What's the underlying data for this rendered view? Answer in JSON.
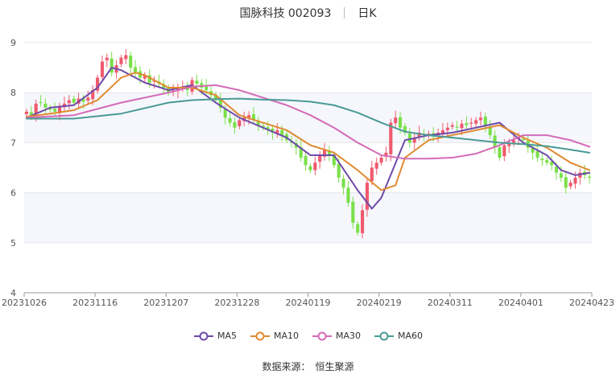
{
  "header": {
    "title": "国脉科技 002093",
    "period": "日K"
  },
  "source": {
    "label": "数据来源：",
    "provider": "恒生聚源"
  },
  "chart_data": {
    "type": "candlestick",
    "y_ticks": [
      4,
      5,
      6,
      7,
      8,
      9
    ],
    "ylim": [
      4,
      9
    ],
    "x_ticks": [
      "20231026",
      "20231116",
      "20231207",
      "20231228",
      "20240119",
      "20240219",
      "20240311",
      "20240401",
      "20240423"
    ],
    "n_bars": 120,
    "up_color": "#f05a6e",
    "down_color": "#7ae04a",
    "candles_close": [
      7.62,
      7.55,
      7.78,
      7.8,
      7.7,
      7.66,
      7.62,
      7.72,
      7.78,
      7.85,
      7.8,
      7.88,
      7.82,
      7.9,
      8.05,
      8.3,
      8.62,
      8.7,
      8.4,
      8.55,
      8.7,
      8.75,
      8.5,
      8.4,
      8.3,
      8.35,
      8.2,
      8.25,
      8.18,
      8.1,
      8.0,
      8.05,
      8.1,
      8.1,
      8.05,
      8.25,
      8.18,
      8.1,
      8.05,
      7.95,
      7.85,
      7.7,
      7.5,
      7.4,
      7.3,
      7.45,
      7.5,
      7.55,
      7.45,
      7.35,
      7.3,
      7.25,
      7.2,
      7.25,
      7.15,
      7.05,
      7.0,
      6.9,
      6.7,
      6.55,
      6.45,
      6.6,
      6.75,
      6.85,
      6.75,
      6.55,
      6.3,
      6.1,
      5.8,
      5.4,
      5.2,
      5.65,
      6.2,
      6.5,
      6.6,
      6.7,
      6.8,
      7.4,
      7.5,
      7.3,
      7.2,
      7.0,
      7.1,
      7.2,
      7.15,
      7.18,
      7.12,
      7.2,
      7.25,
      7.3,
      7.35,
      7.3,
      7.38,
      7.35,
      7.4,
      7.45,
      7.5,
      7.35,
      7.15,
      6.9,
      6.7,
      6.95,
      7.0,
      7.05,
      7.1,
      7.05,
      6.9,
      6.8,
      6.7,
      6.65,
      6.6,
      6.55,
      6.4,
      6.3,
      6.1,
      6.2,
      6.3,
      6.4,
      6.35,
      6.3
    ],
    "series": [
      {
        "name": "MA5",
        "color": "#6e4aa8",
        "x": [
          0,
          5,
          10,
          15,
          18,
          20,
          25,
          30,
          35,
          40,
          45,
          50,
          55,
          60,
          65,
          70,
          73,
          75,
          80,
          85,
          90,
          95,
          100,
          105,
          110,
          113,
          116,
          119
        ],
        "values": [
          7.5,
          7.7,
          7.75,
          8.1,
          8.5,
          8.45,
          8.2,
          8.05,
          8.15,
          7.8,
          7.5,
          7.3,
          7.1,
          6.75,
          6.75,
          6.05,
          5.68,
          5.9,
          7.05,
          7.15,
          7.2,
          7.3,
          7.4,
          7.0,
          6.75,
          6.45,
          6.35,
          6.4
        ]
      },
      {
        "name": "MA10",
        "color": "#e08a30",
        "x": [
          0,
          5,
          10,
          15,
          20,
          23,
          25,
          30,
          35,
          40,
          45,
          50,
          55,
          60,
          65,
          70,
          75,
          78,
          80,
          85,
          90,
          95,
          100,
          105,
          110,
          115,
          119
        ],
        "values": [
          7.52,
          7.58,
          7.65,
          7.85,
          8.3,
          8.4,
          8.35,
          8.1,
          8.1,
          7.95,
          7.55,
          7.4,
          7.25,
          6.95,
          6.8,
          6.45,
          6.05,
          6.15,
          6.7,
          7.05,
          7.15,
          7.25,
          7.35,
          7.1,
          6.9,
          6.6,
          6.45
        ]
      },
      {
        "name": "MA30",
        "color": "#d46ab8",
        "x": [
          0,
          10,
          20,
          30,
          35,
          40,
          45,
          50,
          55,
          60,
          65,
          70,
          75,
          80,
          85,
          90,
          95,
          100,
          105,
          110,
          115,
          119
        ],
        "values": [
          7.5,
          7.55,
          7.8,
          8.0,
          8.12,
          8.15,
          8.05,
          7.9,
          7.75,
          7.55,
          7.3,
          7.0,
          6.75,
          6.68,
          6.68,
          6.7,
          6.78,
          6.95,
          7.15,
          7.15,
          7.05,
          6.92
        ]
      },
      {
        "name": "MA60",
        "color": "#4a9a96",
        "x": [
          0,
          10,
          20,
          30,
          35,
          40,
          45,
          50,
          55,
          60,
          65,
          70,
          75,
          80,
          85,
          90,
          95,
          100,
          105,
          110,
          115,
          119
        ],
        "values": [
          7.48,
          7.48,
          7.58,
          7.8,
          7.85,
          7.87,
          7.88,
          7.86,
          7.85,
          7.82,
          7.75,
          7.6,
          7.4,
          7.22,
          7.15,
          7.1,
          7.05,
          7.0,
          6.97,
          6.93,
          6.86,
          6.8
        ]
      }
    ],
    "legend_position": "bottom-center"
  }
}
